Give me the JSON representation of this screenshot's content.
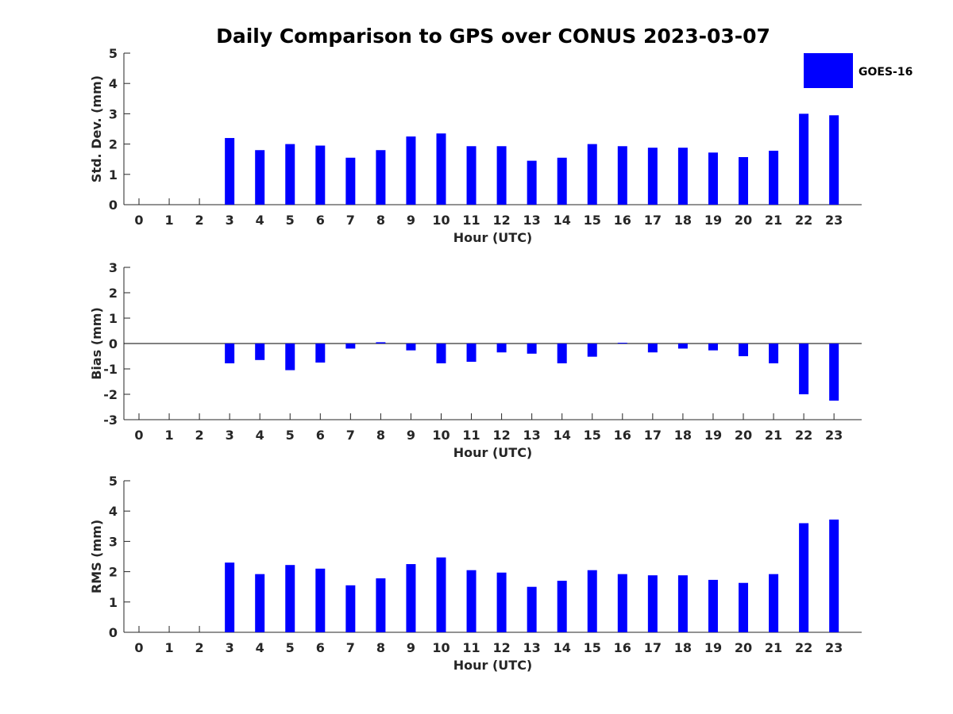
{
  "title": "Daily Comparison to GPS over CONUS 2023-03-07",
  "legend": {
    "label": "GOES-16",
    "color": "#0000ff"
  },
  "chart_data": [
    {
      "type": "bar",
      "ylabel": "Std. Dev. (mm)",
      "xlabel": "Hour (UTC)",
      "ylim": [
        0,
        5
      ],
      "yticks": [
        0,
        1,
        2,
        3,
        4,
        5
      ],
      "categories": [
        "0",
        "1",
        "2",
        "3",
        "4",
        "5",
        "6",
        "7",
        "8",
        "9",
        "10",
        "11",
        "12",
        "13",
        "14",
        "15",
        "16",
        "17",
        "18",
        "19",
        "20",
        "21",
        "22",
        "23"
      ],
      "series": [
        {
          "name": "GOES-16",
          "color": "#0000ff",
          "values": [
            null,
            null,
            null,
            2.2,
            1.8,
            2.0,
            1.95,
            1.55,
            1.8,
            2.25,
            2.35,
            1.93,
            1.93,
            1.45,
            1.55,
            2.0,
            1.93,
            1.88,
            1.88,
            1.72,
            1.57,
            1.78,
            3.0,
            2.95
          ]
        }
      ]
    },
    {
      "type": "bar",
      "ylabel": "Bias (mm)",
      "xlabel": "Hour (UTC)",
      "ylim": [
        -3,
        3
      ],
      "yticks": [
        -3,
        -2,
        -1,
        0,
        1,
        2,
        3
      ],
      "categories": [
        "0",
        "1",
        "2",
        "3",
        "4",
        "5",
        "6",
        "7",
        "8",
        "9",
        "10",
        "11",
        "12",
        "13",
        "14",
        "15",
        "16",
        "17",
        "18",
        "19",
        "20",
        "21",
        "22",
        "23"
      ],
      "series": [
        {
          "name": "GOES-16",
          "color": "#0000ff",
          "values": [
            null,
            null,
            null,
            -0.78,
            -0.65,
            -1.05,
            -0.75,
            -0.2,
            0.05,
            -0.27,
            -0.78,
            -0.72,
            -0.35,
            -0.4,
            -0.78,
            -0.52,
            0.03,
            -0.35,
            -0.2,
            -0.27,
            -0.5,
            -0.78,
            -2.0,
            -2.25
          ]
        }
      ]
    },
    {
      "type": "bar",
      "ylabel": "RMS (mm)",
      "xlabel": "Hour (UTC)",
      "ylim": [
        0,
        5
      ],
      "yticks": [
        0,
        1,
        2,
        3,
        4,
        5
      ],
      "categories": [
        "0",
        "1",
        "2",
        "3",
        "4",
        "5",
        "6",
        "7",
        "8",
        "9",
        "10",
        "11",
        "12",
        "13",
        "14",
        "15",
        "16",
        "17",
        "18",
        "19",
        "20",
        "21",
        "22",
        "23"
      ],
      "series": [
        {
          "name": "GOES-16",
          "color": "#0000ff",
          "values": [
            null,
            null,
            null,
            2.3,
            1.92,
            2.22,
            2.1,
            1.55,
            1.78,
            2.25,
            2.47,
            2.05,
            1.97,
            1.5,
            1.7,
            2.05,
            1.92,
            1.88,
            1.88,
            1.73,
            1.63,
            1.92,
            3.6,
            3.72
          ]
        }
      ]
    }
  ]
}
